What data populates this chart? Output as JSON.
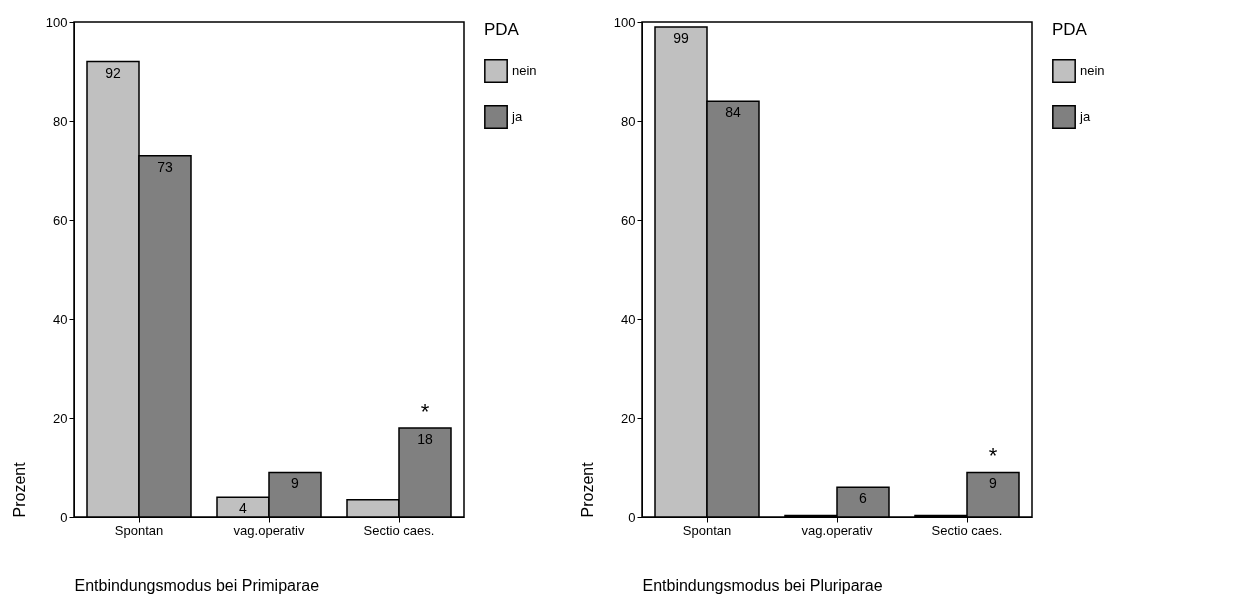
{
  "chart_data": [
    {
      "type": "bar",
      "xlabel": "Entbindungsmodus bei Primiparae",
      "ylabel": "Prozent",
      "legend_title": "PDA",
      "legend": "right",
      "categories": [
        "Spontan",
        "vag.operativ",
        "Sectio caes."
      ],
      "ylim": [
        0,
        100
      ],
      "yticks": [
        0,
        20,
        40,
        60,
        80,
        100
      ],
      "series": [
        {
          "name": "nein",
          "color": "#c0c0c0",
          "values": [
            92,
            4,
            3.5
          ],
          "value_labels": [
            "92",
            "4",
            null
          ]
        },
        {
          "name": "ja",
          "color": "#808080",
          "values": [
            73,
            9,
            18
          ],
          "value_labels": [
            "73",
            "9",
            "18"
          ]
        }
      ],
      "annotations": [
        {
          "text": "*",
          "x": "Sectio caes.",
          "y": 18
        }
      ]
    },
    {
      "type": "bar",
      "xlabel": "Entbindungsmodus bei Pluriparae",
      "ylabel": "Prozent",
      "legend_title": "PDA",
      "legend": "right",
      "categories": [
        "Spontan",
        "vag.operativ",
        "Sectio caes."
      ],
      "ylim": [
        0,
        100
      ],
      "yticks": [
        0,
        20,
        40,
        60,
        80,
        100
      ],
      "series": [
        {
          "name": "nein",
          "color": "#c0c0c0",
          "values": [
            99,
            0.3,
            0.3
          ],
          "value_labels": [
            "99",
            null,
            null
          ]
        },
        {
          "name": "ja",
          "color": "#808080",
          "values": [
            84,
            6,
            9
          ],
          "value_labels": [
            "84",
            "6",
            "9"
          ]
        }
      ],
      "annotations": [
        {
          "text": "*",
          "x": "Sectio caes.",
          "y": 9
        }
      ]
    }
  ]
}
